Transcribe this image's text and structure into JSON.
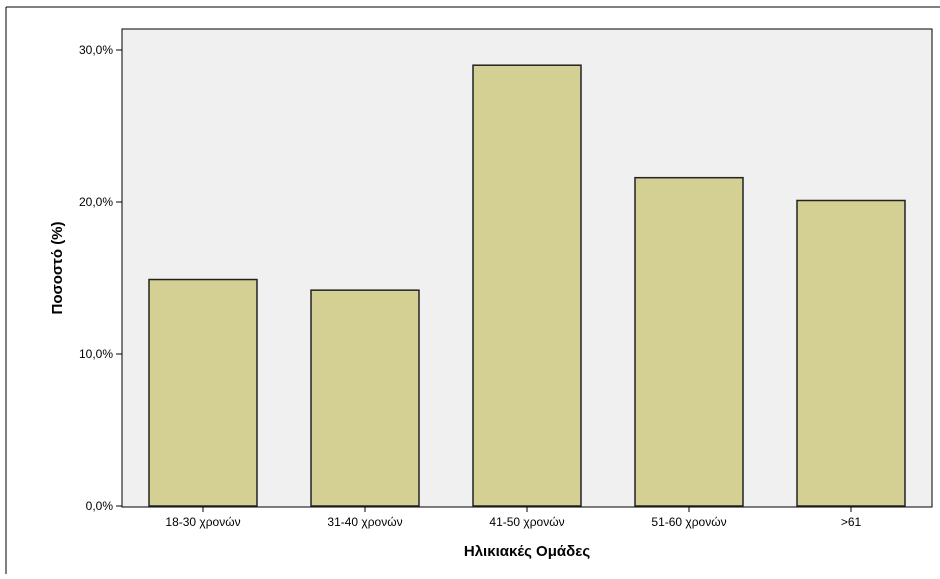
{
  "chart_data": {
    "type": "bar",
    "categories": [
      "18-30 χρονών",
      "31-40 χρονών",
      "41-50 χρονών",
      "51-60 χρονών",
      ">61"
    ],
    "values": [
      14.9,
      14.2,
      29.0,
      21.6,
      20.1
    ],
    "xlabel": "Ηλικιακές Ομάδες",
    "ylabel": "Ποσοστό (%)",
    "ylim": [
      0,
      30
    ],
    "yticks": [
      0,
      10,
      20,
      30
    ],
    "ytick_labels": [
      "0,0%",
      "10,0%",
      "20,0%",
      "30,0%"
    ],
    "grid": false,
    "legend": "none",
    "colors": {
      "bar_fill": "#d4cf93",
      "bar_stroke": "#222222",
      "plot_background": "#f0f0f0",
      "frame": "#000000"
    }
  }
}
